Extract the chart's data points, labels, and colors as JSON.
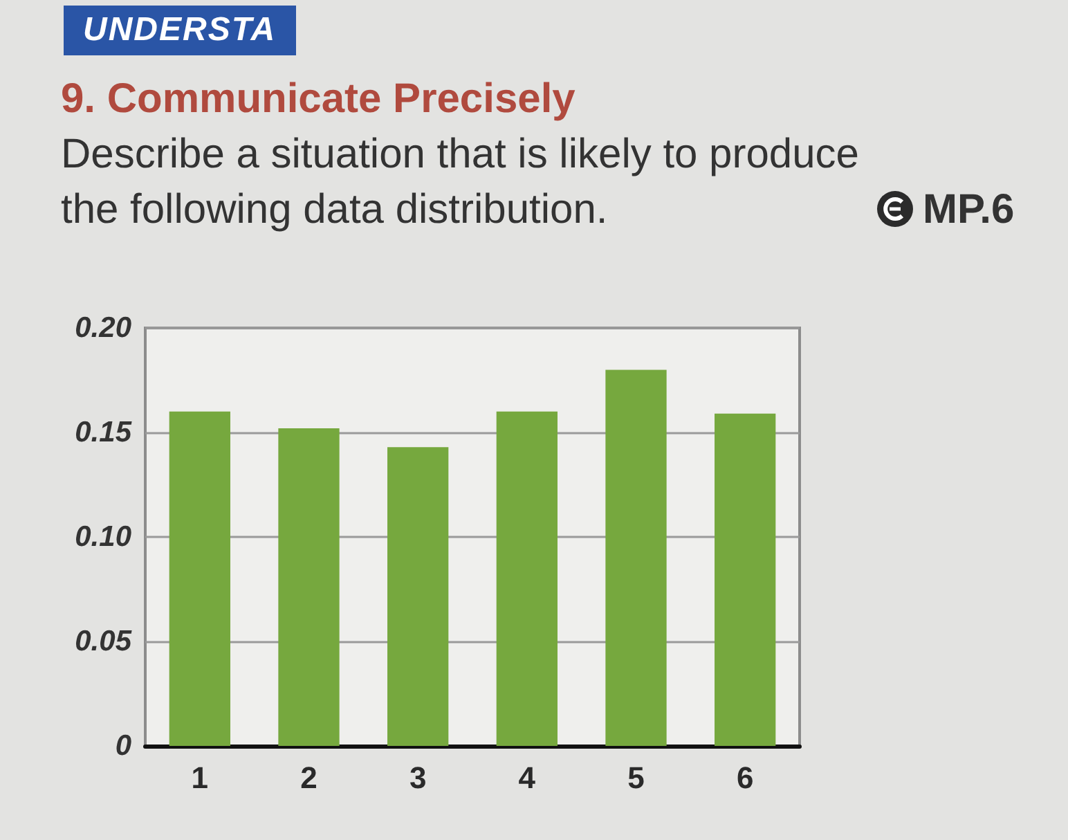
{
  "chart_data": {
    "type": "bar",
    "title": "9. Communicate Precisely",
    "subtitle": "Describe a situation that is likely to produce the following data distribution.",
    "annotations": [
      "UNDERSTA",
      "MP.6"
    ],
    "categories": [
      "1",
      "2",
      "3",
      "4",
      "5",
      "6"
    ],
    "values": [
      0.16,
      0.152,
      0.143,
      0.16,
      0.18,
      0.159
    ],
    "color": "#76a83e",
    "ylim": [
      0,
      0.2
    ],
    "yticks": [
      0,
      0.05,
      {
        "value": 0.1,
        "label": "0.10"
      },
      0.15,
      {
        "value": 0.2,
        "label": "0.20"
      }
    ],
    "grid": "y"
  }
}
